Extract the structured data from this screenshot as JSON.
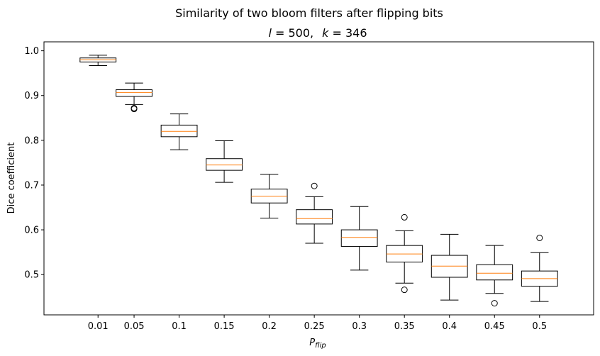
{
  "chart_data": {
    "type": "box",
    "suptitle": "Similarity of two bloom filters after flipping bits",
    "title_l": "l",
    "title_l_value": " = 500,",
    "title_k": "k",
    "title_k_value": " = 346",
    "xlabel_main": "P",
    "xlabel_sub": "flip",
    "ylabel": "Dice coefficient",
    "categories": [
      "0.01",
      "0.05",
      "0.1",
      "0.15",
      "0.2",
      "0.25",
      "0.3",
      "0.35",
      "0.4",
      "0.45",
      "0.5"
    ],
    "x_positions": [
      0.01,
      0.05,
      0.1,
      0.15,
      0.2,
      0.25,
      0.3,
      0.35,
      0.4,
      0.45,
      0.5
    ],
    "xlim": [
      -0.05,
      0.56
    ],
    "ylim": [
      0.41,
      1.02
    ],
    "yticks": [
      0.5,
      0.6,
      0.7,
      0.8,
      0.9,
      1.0
    ],
    "ytick_labels": [
      "0.5",
      "0.6",
      "0.7",
      "0.8",
      "0.9",
      "1.0"
    ],
    "grid": false,
    "box_color": "#000000",
    "median_color": "#ff7f0e",
    "boxes": [
      {
        "whisker_low": 0.967,
        "q1": 0.975,
        "median": 0.98,
        "q3": 0.984,
        "whisker_high": 0.99,
        "outliers": []
      },
      {
        "whisker_low": 0.88,
        "q1": 0.898,
        "median": 0.907,
        "q3": 0.913,
        "whisker_high": 0.928,
        "outliers": [
          0.87,
          0.872
        ]
      },
      {
        "whisker_low": 0.779,
        "q1": 0.808,
        "median": 0.82,
        "q3": 0.834,
        "whisker_high": 0.859,
        "outliers": []
      },
      {
        "whisker_low": 0.706,
        "q1": 0.733,
        "median": 0.745,
        "q3": 0.759,
        "whisker_high": 0.799,
        "outliers": []
      },
      {
        "whisker_low": 0.626,
        "q1": 0.66,
        "median": 0.675,
        "q3": 0.691,
        "whisker_high": 0.724,
        "outliers": []
      },
      {
        "whisker_low": 0.57,
        "q1": 0.613,
        "median": 0.625,
        "q3": 0.645,
        "whisker_high": 0.674,
        "outliers": [
          0.698
        ]
      },
      {
        "whisker_low": 0.51,
        "q1": 0.563,
        "median": 0.583,
        "q3": 0.6,
        "whisker_high": 0.652,
        "outliers": []
      },
      {
        "whisker_low": 0.481,
        "q1": 0.528,
        "median": 0.546,
        "q3": 0.565,
        "whisker_high": 0.598,
        "outliers": [
          0.628,
          0.466
        ]
      },
      {
        "whisker_low": 0.443,
        "q1": 0.494,
        "median": 0.519,
        "q3": 0.543,
        "whisker_high": 0.59,
        "outliers": []
      },
      {
        "whisker_low": 0.458,
        "q1": 0.488,
        "median": 0.503,
        "q3": 0.522,
        "whisker_high": 0.565,
        "outliers": [
          0.436
        ]
      },
      {
        "whisker_low": 0.44,
        "q1": 0.474,
        "median": 0.491,
        "q3": 0.508,
        "whisker_high": 0.549,
        "outliers": [
          0.582
        ]
      }
    ]
  }
}
